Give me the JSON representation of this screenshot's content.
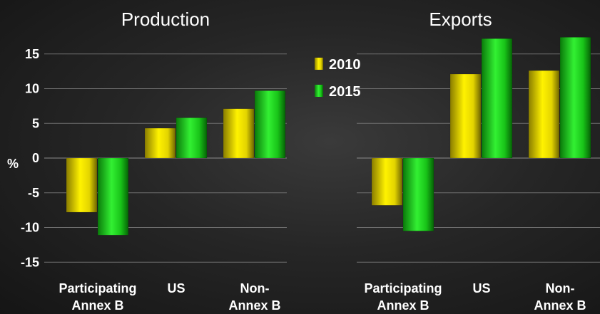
{
  "chart_data": {
    "type": "bar",
    "y_unit_label": "%",
    "ylim": [
      -15,
      17.5
    ],
    "yticks": [
      15,
      10,
      5,
      0,
      -5,
      -10,
      -15
    ],
    "grid": true,
    "legend_placement": "center-top",
    "series": [
      {
        "name": "2010",
        "color": "#f2e600"
      },
      {
        "name": "2015",
        "color": "#22d622"
      }
    ],
    "panels": [
      {
        "title": "Production",
        "categories": [
          "Participating Annex B",
          "US",
          "Non-Annex B"
        ],
        "category_lines": [
          [
            "Participating",
            "Annex B"
          ],
          [
            "US"
          ],
          [
            "Non-",
            "Annex B"
          ]
        ],
        "values": {
          "2010": [
            -7.8,
            4.3,
            7.1
          ],
          "2015": [
            -11.1,
            5.8,
            9.7
          ]
        }
      },
      {
        "title": "Exports",
        "categories": [
          "Participating Annex B",
          "US",
          "Non-Annex B"
        ],
        "category_lines": [
          [
            "Participating",
            "Annex B"
          ],
          [
            "US"
          ],
          [
            "Non-",
            "Annex B"
          ]
        ],
        "values": {
          "2010": [
            -6.8,
            12.1,
            12.6
          ],
          "2015": [
            -10.5,
            17.2,
            17.4
          ]
        }
      }
    ]
  }
}
